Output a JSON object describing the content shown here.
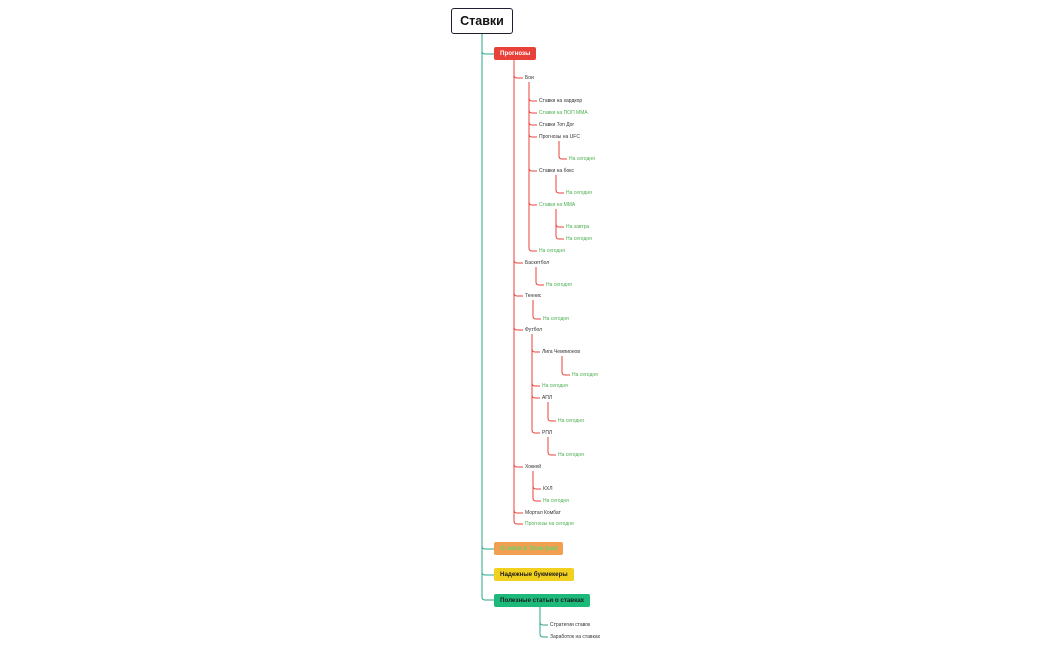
{
  "root": "Ставки",
  "branches": {
    "prognozy": {
      "label": "Прогнозы",
      "color": "#e8413a",
      "items": {
        "boi": "Бои",
        "boi_hardcore": "Ставки на хардкор",
        "boi_pop_mma": "Ставки на ПОП ММА",
        "boi_top_dog": "Ставки Топ Дог",
        "boi_ufc": "Прогнозы на UFC",
        "boi_ufc_today": "На сегодня",
        "boi_boxing": "Ставки на бокс",
        "boi_boxing_today": "На сегодня",
        "boi_mma": "Ставки на ММА",
        "boi_mma_tomorrow": "На завтра",
        "boi_mma_today": "На сегодня",
        "boi_today": "На сегодня",
        "basketball": "Баскетбол",
        "basketball_today": "На сегодня",
        "tennis": "Теннис",
        "tennis_today": "На сегодня",
        "football": "Футбол",
        "football_cl": "Лига Чемпионов",
        "football_cl_today": "На сегодня",
        "football_today": "На сегодня",
        "football_apl": "АПЛ",
        "football_apl_today": "На сегодня",
        "football_rpl": "РПЛ",
        "football_rpl_today": "На сегодня",
        "hockey": "Хоккей",
        "hockey_khl": "КХЛ",
        "hockey_today": "На сегодня",
        "mortal_kombat": "Мортал Комбат",
        "today_forecasts": "Прогнозы на сегодня"
      }
    },
    "telegram": {
      "label": "Ставки в Телеграм",
      "color": "#f0a050",
      "text_color": "#6fcf6f"
    },
    "bookmakers": {
      "label": "Надежные букмекеры",
      "color": "#f2d020",
      "text_color": "#1a1a1a"
    },
    "articles": {
      "label": "Полезные статьи о ставках",
      "color": "#1db97a",
      "text_color": "#1a1a1a",
      "items": {
        "strategies": "Стратегии ставок",
        "earning": "Заработок на ставках"
      }
    }
  },
  "colors": {
    "trunk": "#2aa58a",
    "red_line": "#e8413a",
    "teal_line": "#2aa58a",
    "node_text": "#333333",
    "link_text": "#4caf50"
  }
}
